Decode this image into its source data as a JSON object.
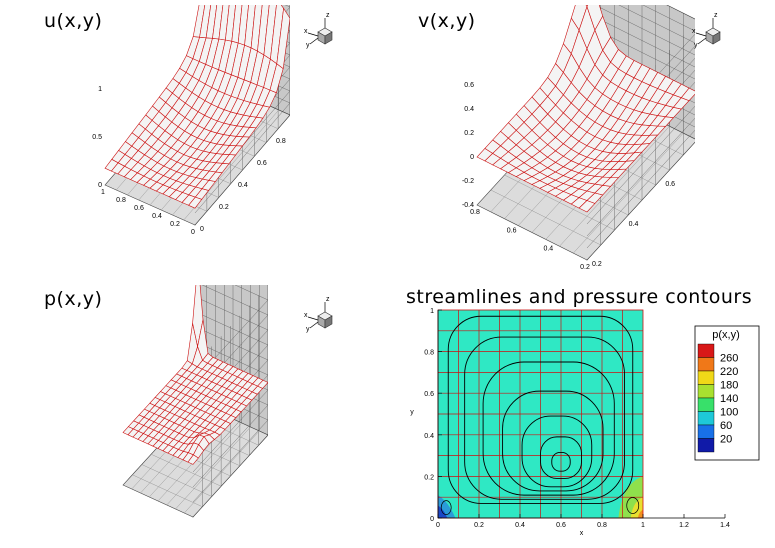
{
  "panels": {
    "u": {
      "title": "u(x,y)"
    },
    "v": {
      "title": "v(x,y)"
    },
    "p": {
      "title": "p(x,y)"
    },
    "sl": {
      "title": "streamlines and pressure contours"
    }
  },
  "triad": {
    "x": "x",
    "y": "y",
    "z": "z"
  },
  "colors": {
    "grid_red": "#cc1111",
    "box_gray": "#b8b8b8",
    "floor_gray": "#dcdcdc",
    "cyan_fill": "#2fe8c4"
  },
  "chart_data": [
    {
      "type": "surface",
      "title": "u(x,y)",
      "z_ticks": [
        "1",
        "0.5",
        "0"
      ],
      "x_ticks": [
        "1",
        "0.8",
        "0.6",
        "0.4",
        "0.2",
        "0"
      ],
      "y_ticks": [
        "0",
        "0.2",
        "0.4",
        "0.6",
        "0.8",
        "1"
      ]
    },
    {
      "type": "surface",
      "title": "v(x,y)",
      "z_ticks": [
        "0.6",
        "0.4",
        "0.2",
        "0",
        "-0.2",
        "-0.4"
      ],
      "x_ticks": [
        "0.8",
        "0.6",
        "0.4",
        "0.2"
      ],
      "y_ticks": [
        "0.2",
        "0.4",
        "0.6",
        "0.8"
      ]
    },
    {
      "type": "surface",
      "title": "p(x,y)"
    },
    {
      "type": "contour",
      "title": "streamlines and pressure contours",
      "xlabel": "x",
      "ylabel": "y",
      "xlim": [
        0,
        1.4
      ],
      "ylim": [
        0,
        1
      ],
      "x_ticks": [
        0,
        0.2,
        0.4,
        0.6,
        0.8,
        1,
        1.2,
        1.4
      ],
      "y_ticks": [
        0,
        0.2,
        0.4,
        0.6,
        0.8,
        1
      ],
      "legend": {
        "title": "p(x,y)",
        "levels": [
          260,
          220,
          180,
          140,
          100,
          60,
          20
        ]
      },
      "vortex_center": [
        0.6,
        0.27
      ]
    }
  ]
}
